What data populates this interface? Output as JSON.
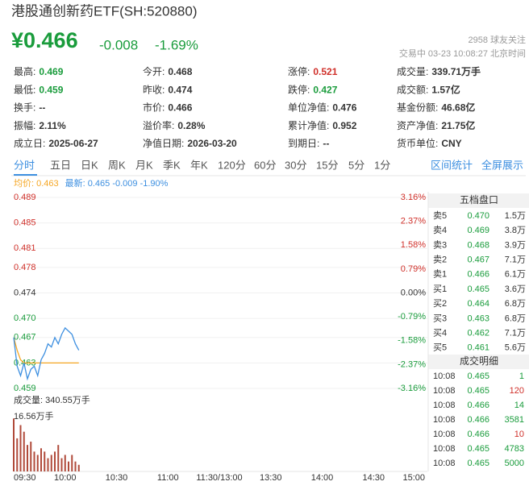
{
  "header": {
    "title": "港股通创新药ETF(SH:520880)",
    "price": "¥0.466",
    "change": "-0.008",
    "change_pct": "-1.69%",
    "followers": "2958 球友关注",
    "status": "交易中 03-23 10:08:27 北京时间"
  },
  "stats": [
    [
      {
        "label": "最高:",
        "value": "0.469"
      },
      {
        "label": "今开:",
        "value": "0.468"
      },
      {
        "label": "涨停:",
        "value": "0.521"
      },
      {
        "label": "成交量:",
        "value": "339.71万手"
      }
    ],
    [
      {
        "label": "最低:",
        "value": "0.459"
      },
      {
        "label": "昨收:",
        "value": "0.474"
      },
      {
        "label": "跌停:",
        "value": "0.427"
      },
      {
        "label": "成交额:",
        "value": "1.57亿"
      }
    ],
    [
      {
        "label": "换手:",
        "value": "--"
      },
      {
        "label": "市价:",
        "value": "0.466"
      },
      {
        "label": "单位净值:",
        "value": "0.476"
      },
      {
        "label": "基金份额:",
        "value": "46.68亿"
      }
    ],
    [
      {
        "label": "振幅:",
        "value": "2.11%"
      },
      {
        "label": "溢价率:",
        "value": "0.28%"
      },
      {
        "label": "累计净值:",
        "value": "0.952"
      },
      {
        "label": "资产净值:",
        "value": "21.75亿"
      }
    ],
    [
      {
        "label": "成立日:",
        "value": "2025-06-27"
      },
      {
        "label": "净值日期:",
        "value": "2026-03-20"
      },
      {
        "label": "到期日:",
        "value": "--"
      },
      {
        "label": "货币单位:",
        "value": "CNY"
      }
    ]
  ],
  "tabs": [
    "分时",
    "五日",
    "日K",
    "周K",
    "月K",
    "季K",
    "年K",
    "120分",
    "60分",
    "30分",
    "15分",
    "5分",
    "1分"
  ],
  "links": [
    "区间统计",
    "全屏展示"
  ],
  "chart_data": {
    "type": "line",
    "volume_label": "成交量: 340.55万手",
    "x": [
      0,
      2,
      4,
      6,
      8,
      10,
      12,
      14,
      16,
      18,
      20,
      22,
      24,
      26,
      28,
      30,
      32,
      34,
      36,
      38
    ],
    "xlim": [
      0,
      240
    ],
    "xticks": [
      {
        "value": 0,
        "label": "09:30"
      },
      {
        "value": 30,
        "label": "10:00"
      },
      {
        "value": 60,
        "label": "10:30"
      },
      {
        "value": 90,
        "label": "11:00"
      },
      {
        "value": 120,
        "label": "11:30/13:00"
      },
      {
        "value": 150,
        "label": "13:30"
      },
      {
        "value": 180,
        "label": "14:00"
      },
      {
        "value": 210,
        "label": "14:30"
      },
      {
        "value": 240,
        "label": "15:00"
      }
    ],
    "ylim": [
      0.459,
      0.489
    ],
    "yticks": [
      {
        "value": 0.489,
        "label": "0.489"
      },
      {
        "value": 0.485,
        "label": "0.485"
      },
      {
        "value": 0.481,
        "label": "0.481"
      },
      {
        "value": 0.478,
        "label": "0.478"
      },
      {
        "value": 0.474,
        "label": "0.474"
      },
      {
        "value": 0.47,
        "label": "0.470"
      },
      {
        "value": 0.467,
        "label": "0.467"
      },
      {
        "value": 0.463,
        "label": "0.463"
      },
      {
        "value": 0.459,
        "label": "0.459"
      }
    ],
    "y2lim": [
      -3.16,
      3.16
    ],
    "y2ticks": [
      {
        "value": 3.16,
        "label": "3.16%"
      },
      {
        "value": 2.37,
        "label": "2.37%"
      },
      {
        "value": 1.58,
        "label": "1.58%"
      },
      {
        "value": 0.79,
        "label": "0.79%"
      },
      {
        "value": 0,
        "label": "0.00%"
      },
      {
        "value": -0.79,
        "label": "-0.79%"
      },
      {
        "value": -1.58,
        "label": "-1.58%"
      },
      {
        "value": -2.37,
        "label": "-2.37%"
      },
      {
        "value": -3.16,
        "label": "-3.16%"
      }
    ],
    "series": [
      {
        "name": "均价: 0.463",
        "color": "#f5a623",
        "values": [
          0.467,
          0.465,
          0.4635,
          0.463,
          0.463,
          0.463,
          0.463,
          0.463,
          0.463,
          0.463,
          0.463,
          0.463,
          0.463,
          0.463,
          0.463,
          0.463,
          0.463,
          0.463,
          0.463,
          0.463
        ]
      },
      {
        "name": "最新: 0.465 -0.009 -1.90%",
        "color": "#3d8fe0",
        "values": [
          0.467,
          0.4625,
          0.461,
          0.463,
          0.4605,
          0.462,
          0.4625,
          0.461,
          0.4635,
          0.4645,
          0.466,
          0.4655,
          0.467,
          0.466,
          0.4675,
          0.4685,
          0.468,
          0.4675,
          0.466,
          0.465
        ]
      }
    ],
    "volume": {
      "color": "#b04a3a",
      "values": [
        16,
        10,
        14,
        12,
        8,
        9,
        6,
        5,
        7,
        6,
        4,
        5,
        6,
        8,
        4,
        5,
        3,
        5,
        3,
        2
      ],
      "ylim": [
        0,
        16.56
      ],
      "yticks": [
        {
          "value": 16.56,
          "label": "16.56万手"
        }
      ]
    }
  },
  "order_book": {
    "title": "五档盘口",
    "rows": [
      [
        "卖5",
        "0.470",
        "1.5万"
      ],
      [
        "卖4",
        "0.469",
        "3.8万"
      ],
      [
        "卖3",
        "0.468",
        "3.9万"
      ],
      [
        "卖2",
        "0.467",
        "7.1万"
      ],
      [
        "卖1",
        "0.466",
        "6.1万"
      ],
      [
        "买1",
        "0.465",
        "3.6万"
      ],
      [
        "买2",
        "0.464",
        "6.8万"
      ],
      [
        "买3",
        "0.463",
        "6.8万"
      ],
      [
        "买4",
        "0.462",
        "7.1万"
      ],
      [
        "买5",
        "0.461",
        "5.6万"
      ]
    ]
  },
  "trades": {
    "title": "成交明细",
    "rows": [
      [
        "10:08",
        "0.465",
        "1"
      ],
      [
        "10:08",
        "0.465",
        "120"
      ],
      [
        "10:08",
        "0.466",
        "14"
      ],
      [
        "10:08",
        "0.466",
        "3581"
      ],
      [
        "10:08",
        "0.466",
        "10"
      ],
      [
        "10:08",
        "0.465",
        "4783"
      ],
      [
        "10:08",
        "0.465",
        "5000"
      ]
    ]
  }
}
